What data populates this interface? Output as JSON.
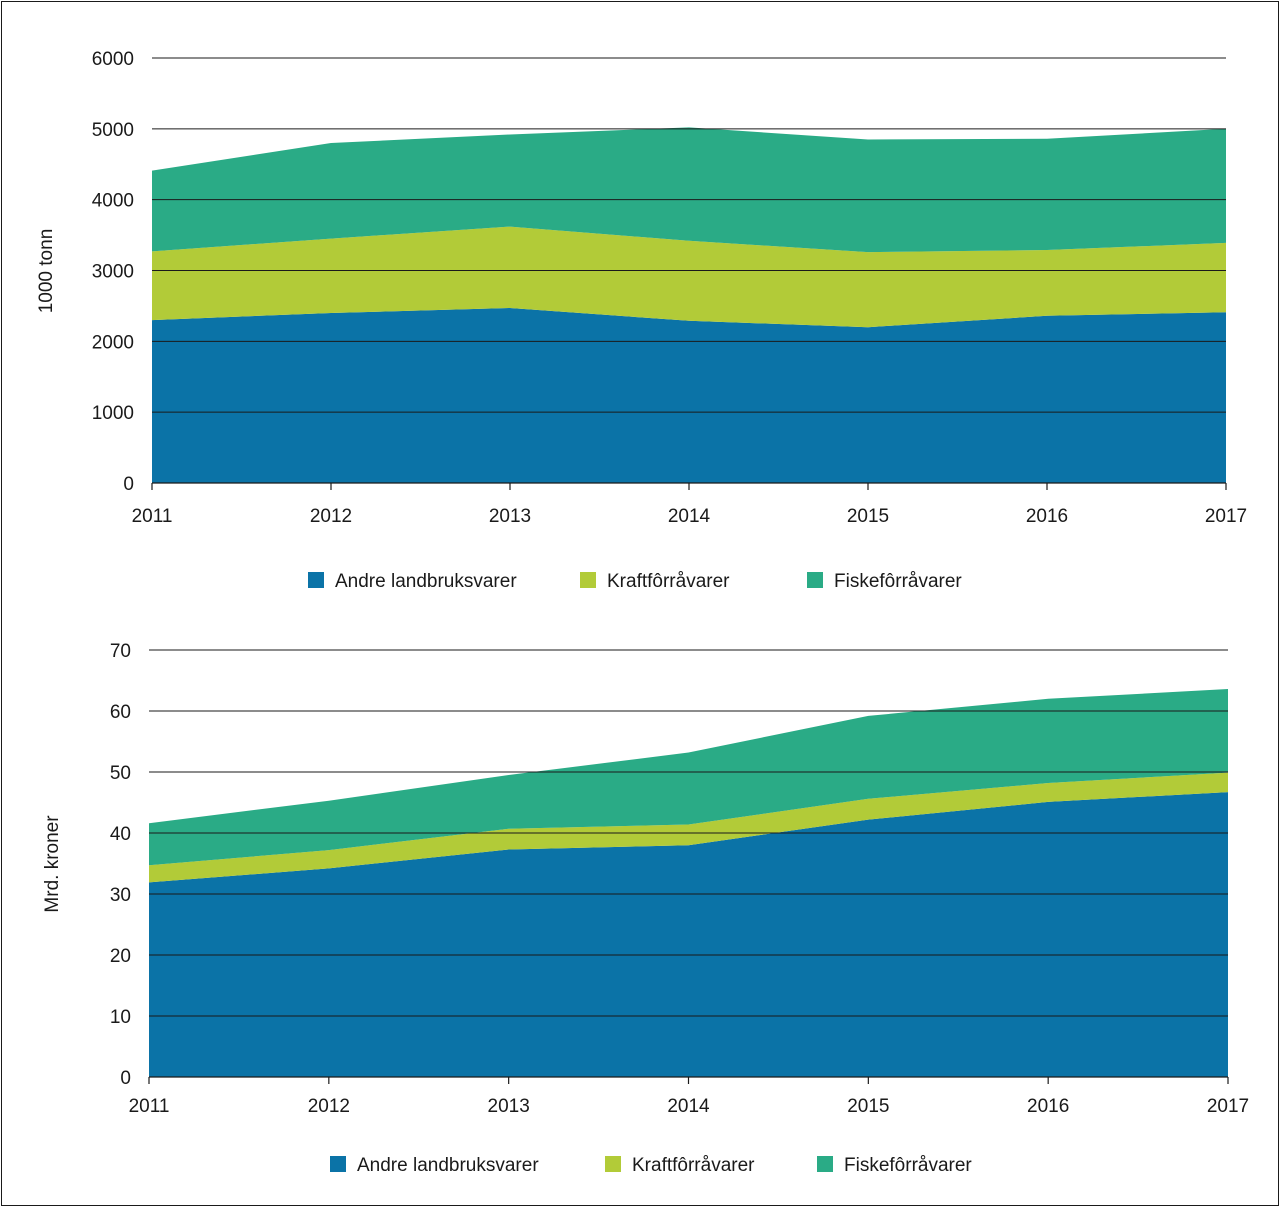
{
  "chart_data": [
    {
      "type": "area",
      "stacked": true,
      "x": [
        2011,
        2012,
        2013,
        2014,
        2015,
        2016,
        2017
      ],
      "ylabel": "1000 tonn",
      "ylim": [
        0,
        6000
      ],
      "yticks": [
        0,
        1000,
        2000,
        3000,
        4000,
        5000,
        6000
      ],
      "grid": true,
      "legend": "bottom",
      "series": [
        {
          "name": "Andre landbruksvarer",
          "color": "#0b73a7",
          "values": [
            2300,
            2400,
            2470,
            2290,
            2200,
            2360,
            2410
          ]
        },
        {
          "name": "Kraftfôrråvarer",
          "color": "#b2cb38",
          "values": [
            970,
            1050,
            1150,
            1130,
            1060,
            930,
            980
          ]
        },
        {
          "name": "Fiskefôrråvarer",
          "color": "#2aab86",
          "values": [
            1140,
            1350,
            1300,
            1600,
            1590,
            1570,
            1610
          ]
        }
      ]
    },
    {
      "type": "area",
      "stacked": true,
      "x": [
        2011,
        2012,
        2013,
        2014,
        2015,
        2016,
        2017
      ],
      "ylabel": "Mrd. kroner",
      "ylim": [
        0,
        70
      ],
      "yticks": [
        0,
        10,
        20,
        30,
        40,
        50,
        60,
        70
      ],
      "grid": true,
      "legend": "bottom",
      "series": [
        {
          "name": "Andre landbruksvarer",
          "color": "#0b73a7",
          "values": [
            31.9,
            34.2,
            37.3,
            38.0,
            42.2,
            45.1,
            46.7
          ]
        },
        {
          "name": "Kraftfôrråvarer",
          "color": "#b2cb38",
          "values": [
            2.8,
            3.0,
            3.4,
            3.4,
            3.4,
            3.1,
            3.2
          ]
        },
        {
          "name": "Fiskefôrråvarer",
          "color": "#2aab86",
          "values": [
            6.9,
            8.1,
            8.8,
            11.8,
            13.6,
            13.8,
            13.7
          ]
        }
      ]
    }
  ]
}
